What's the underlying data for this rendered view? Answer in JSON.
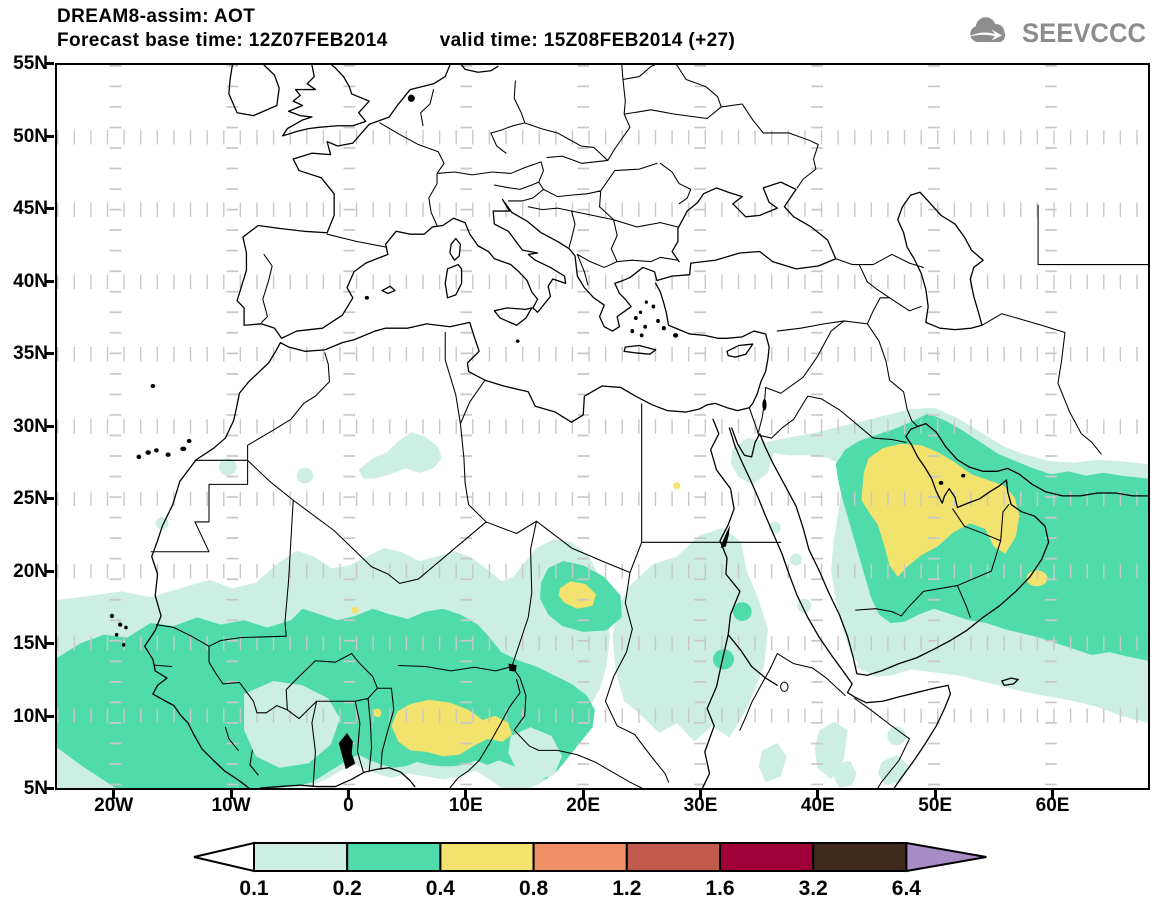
{
  "header": {
    "title": "DREAM8-assim: AOT",
    "base_time": "Forecast base time: 12Z07FEB2014",
    "valid_time": "valid time: 15Z08FEB2014 (+27)"
  },
  "logo": {
    "text": "SEEVCCC",
    "color": "#8d8d8d"
  },
  "axes": {
    "y": [
      {
        "label": "55N",
        "lat": 55
      },
      {
        "label": "50N",
        "lat": 50
      },
      {
        "label": "45N",
        "lat": 45
      },
      {
        "label": "40N",
        "lat": 40
      },
      {
        "label": "35N",
        "lat": 35
      },
      {
        "label": "30N",
        "lat": 30
      },
      {
        "label": "25N",
        "lat": 25
      },
      {
        "label": "20N",
        "lat": 20
      },
      {
        "label": "15N",
        "lat": 15
      },
      {
        "label": "10N",
        "lat": 10
      },
      {
        "label": "5N",
        "lat": 5
      }
    ],
    "x": [
      {
        "label": "20W",
        "lon": -20
      },
      {
        "label": "10W",
        "lon": -10
      },
      {
        "label": "0",
        "lon": 0
      },
      {
        "label": "10E",
        "lon": 10
      },
      {
        "label": "20E",
        "lon": 20
      },
      {
        "label": "30E",
        "lon": 30
      },
      {
        "label": "40E",
        "lon": 40
      },
      {
        "label": "50E",
        "lon": 50
      },
      {
        "label": "60E",
        "lon": 60
      }
    ]
  },
  "colorbar": {
    "levels": [
      "0.1",
      "0.2",
      "0.4",
      "0.8",
      "1.2",
      "1.6",
      "3.2",
      "6.4"
    ],
    "segment_colors": [
      "#cdeee3",
      "#4fdcaa",
      "#f2e26e",
      "#f09066",
      "#bf5a4d",
      "#a00038",
      "#3f2a1c"
    ],
    "below_color": "#ffffff",
    "above_color": "#a88cc8",
    "outline_color": "#000000"
  },
  "map": {
    "fill_colors": {
      "aot_0_1": "#cdeee3",
      "aot_0_2": "#4fdcaa",
      "aot_0_4": "#f2e26e"
    },
    "grid_color": "#c8c8c8",
    "line_color": "#000000",
    "lat_range": "5N - 55N",
    "lon_range": "25W - 68E"
  }
}
